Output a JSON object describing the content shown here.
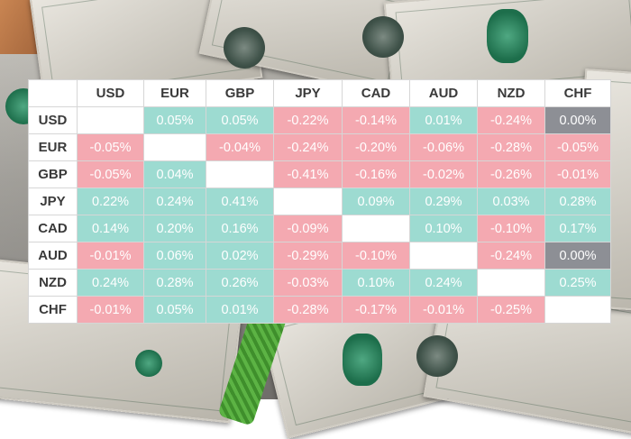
{
  "colors": {
    "positive": "#9ddbd1",
    "negative": "#f4a9b1",
    "zero": "#8d8f95",
    "blank": "#ffffff"
  },
  "columns": [
    "USD",
    "EUR",
    "GBP",
    "JPY",
    "CAD",
    "AUD",
    "NZD",
    "CHF"
  ],
  "rows": [
    {
      "currency": "USD",
      "values": [
        "",
        "0.05%",
        "0.05%",
        "-0.22%",
        "-0.14%",
        "0.01%",
        "-0.24%",
        "0.00%"
      ]
    },
    {
      "currency": "EUR",
      "values": [
        "-0.05%",
        "",
        "-0.04%",
        "-0.24%",
        "-0.20%",
        "-0.06%",
        "-0.28%",
        "-0.05%"
      ]
    },
    {
      "currency": "GBP",
      "values": [
        "-0.05%",
        "0.04%",
        "",
        "-0.41%",
        "-0.16%",
        "-0.02%",
        "-0.26%",
        "-0.01%"
      ]
    },
    {
      "currency": "JPY",
      "values": [
        "0.22%",
        "0.24%",
        "0.41%",
        "",
        "0.09%",
        "0.29%",
        "0.03%",
        "0.28%"
      ]
    },
    {
      "currency": "CAD",
      "values": [
        "0.14%",
        "0.20%",
        "0.16%",
        "-0.09%",
        "",
        "0.10%",
        "-0.10%",
        "0.17%"
      ]
    },
    {
      "currency": "AUD",
      "values": [
        "-0.01%",
        "0.06%",
        "0.02%",
        "-0.29%",
        "-0.10%",
        "",
        "-0.24%",
        "0.00%"
      ]
    },
    {
      "currency": "NZD",
      "values": [
        "0.24%",
        "0.28%",
        "0.26%",
        "-0.03%",
        "0.10%",
        "0.24%",
        "",
        "0.25%"
      ]
    },
    {
      "currency": "CHF",
      "values": [
        "-0.01%",
        "0.05%",
        "0.01%",
        "-0.28%",
        "-0.17%",
        "-0.01%",
        "-0.25%",
        ""
      ]
    }
  ]
}
